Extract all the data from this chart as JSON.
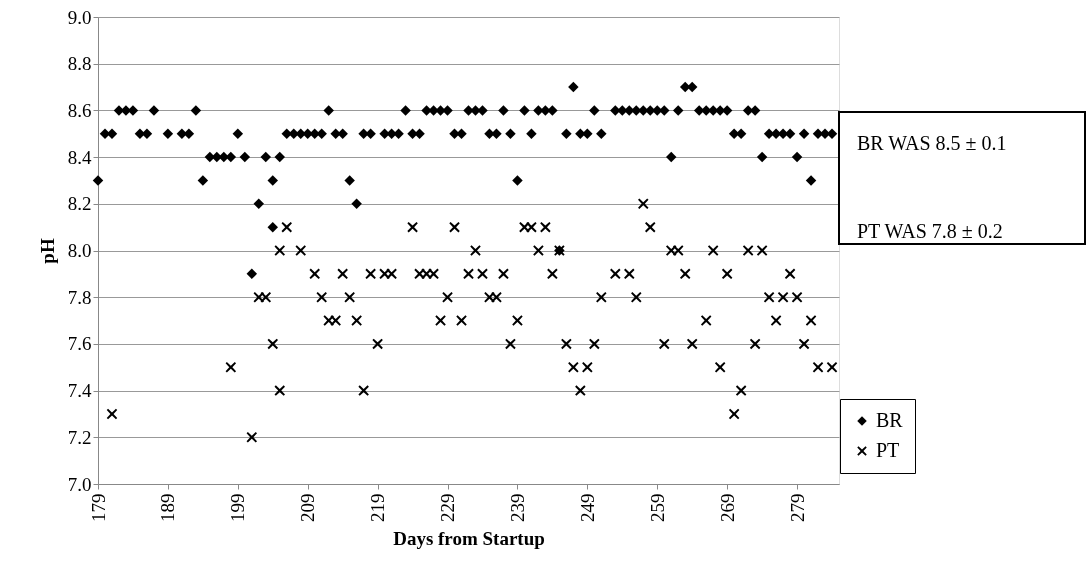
{
  "chart_data": {
    "type": "scatter",
    "xlabel": "Days from Startup",
    "ylabel": "pH",
    "xlim": [
      179,
      285
    ],
    "xticks": [
      179,
      189,
      199,
      209,
      219,
      229,
      239,
      249,
      259,
      269,
      279
    ],
    "ylim": [
      7.0,
      9.0
    ],
    "yticks": [
      {
        "value": 7.0,
        "label": "7.0"
      },
      {
        "value": 7.2,
        "label": "7.2"
      },
      {
        "value": 7.4,
        "label": "7.4"
      },
      {
        "value": 7.6,
        "label": "7.6"
      },
      {
        "value": 7.8,
        "label": "7.8"
      },
      {
        "value": 8.0,
        "label": "8.0"
      },
      {
        "value": 8.2,
        "label": "8.2"
      },
      {
        "value": 8.4,
        "label": "8.4"
      },
      {
        "value": 8.6,
        "label": "8.6"
      },
      {
        "value": 8.8,
        "label": "8.8"
      },
      {
        "value": 9.0,
        "label": "9.0"
      }
    ],
    "grid": "y",
    "legend": "bottom right",
    "annotations": [
      "BR WAS 8.5 ± 0.1",
      "PT WAS 7.8 ± 0.2"
    ],
    "series": [
      {
        "name": "BR",
        "color": "#000000",
        "marker": "diamond",
        "x": [
          179,
          180,
          181,
          182,
          183,
          184,
          185,
          186,
          187,
          189,
          191,
          192,
          193,
          194,
          195,
          196,
          197,
          198,
          199,
          200,
          201,
          202,
          203,
          204,
          204,
          205,
          206,
          207,
          208,
          209,
          210,
          211,
          212,
          213,
          214,
          215,
          216,
          217,
          218,
          220,
          221,
          222,
          223,
          224,
          225,
          226,
          227,
          228,
          229,
          230,
          231,
          232,
          233,
          234,
          235,
          236,
          237,
          238,
          239,
          240,
          241,
          242,
          243,
          244,
          245,
          246,
          247,
          248,
          249,
          250,
          251,
          253,
          254,
          255,
          256,
          257,
          258,
          259,
          260,
          261,
          262,
          263,
          264,
          265,
          266,
          267,
          268,
          269,
          270,
          271,
          272,
          273,
          274,
          275,
          276,
          277,
          278,
          279,
          280,
          281,
          282,
          283,
          284
        ],
        "values": [
          8.3,
          8.5,
          8.5,
          8.6,
          8.6,
          8.6,
          8.5,
          8.5,
          8.6,
          8.5,
          8.5,
          8.5,
          8.6,
          8.3,
          8.4,
          8.4,
          8.4,
          8.4,
          8.5,
          8.4,
          7.9,
          8.2,
          8.4,
          8.3,
          8.1,
          8.4,
          8.5,
          8.5,
          8.5,
          8.5,
          8.5,
          8.5,
          8.6,
          8.5,
          8.5,
          8.3,
          8.2,
          8.5,
          8.5,
          8.5,
          8.5,
          8.5,
          8.6,
          8.5,
          8.5,
          8.6,
          8.6,
          8.6,
          8.6,
          8.5,
          8.5,
          8.6,
          8.6,
          8.6,
          8.5,
          8.5,
          8.6,
          8.5,
          8.3,
          8.6,
          8.5,
          8.6,
          8.6,
          8.6,
          8.0,
          8.5,
          8.7,
          8.5,
          8.5,
          8.6,
          8.5,
          8.6,
          8.6,
          8.6,
          8.6,
          8.6,
          8.6,
          8.6,
          8.6,
          8.4,
          8.6,
          8.7,
          8.7,
          8.6,
          8.6,
          8.6,
          8.6,
          8.6,
          8.5,
          8.5,
          8.6,
          8.6,
          8.4,
          8.5,
          8.5,
          8.5,
          8.5,
          8.4,
          8.5,
          8.3,
          8.5,
          8.5,
          8.5
        ]
      },
      {
        "name": "PT",
        "color": "#000000",
        "marker": "cross",
        "x": [
          181,
          198,
          201,
          202,
          203,
          204,
          205,
          205,
          206,
          208,
          210,
          211,
          212,
          213,
          214,
          215,
          216,
          217,
          218,
          219,
          220,
          221,
          224,
          225,
          226,
          227,
          228,
          229,
          230,
          231,
          232,
          233,
          234,
          235,
          236,
          237,
          238,
          239,
          240,
          241,
          242,
          243,
          244,
          245,
          246,
          247,
          248,
          249,
          250,
          251,
          253,
          255,
          256,
          257,
          258,
          260,
          261,
          262,
          263,
          264,
          266,
          267,
          268,
          269,
          270,
          271,
          272,
          273,
          274,
          275,
          276,
          277,
          278,
          279,
          280,
          281,
          282,
          284
        ],
        "values": [
          7.3,
          7.5,
          7.2,
          7.8,
          7.8,
          7.6,
          8.0,
          7.4,
          8.1,
          8.0,
          7.9,
          7.8,
          7.7,
          7.7,
          7.9,
          7.8,
          7.7,
          7.4,
          7.9,
          7.6,
          7.9,
          7.9,
          8.1,
          7.9,
          7.9,
          7.9,
          7.7,
          7.8,
          8.1,
          7.7,
          7.9,
          8.0,
          7.9,
          7.8,
          7.8,
          7.9,
          7.6,
          7.7,
          8.1,
          8.1,
          8.0,
          8.1,
          7.9,
          8.0,
          7.6,
          7.5,
          7.4,
          7.5,
          7.6,
          7.8,
          7.9,
          7.9,
          7.8,
          8.2,
          8.1,
          7.6,
          8.0,
          8.0,
          7.9,
          7.6,
          7.7,
          8.0,
          7.5,
          7.9,
          7.3,
          7.4,
          8.0,
          7.6,
          8.0,
          7.8,
          7.7,
          7.8,
          7.9,
          7.8,
          7.6,
          7.7,
          7.5,
          7.5
        ]
      }
    ]
  }
}
